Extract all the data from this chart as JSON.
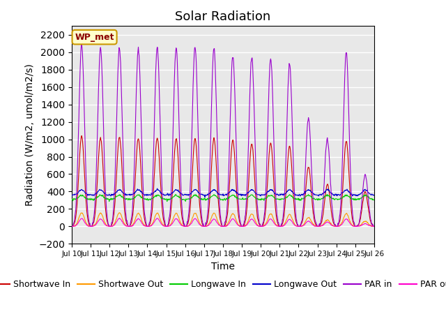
{
  "title": "Solar Radiation",
  "xlabel": "Time",
  "ylabel": "Radiation (W/m2, umol/m2/s)",
  "xlim_days": [
    10,
    26
  ],
  "ylim": [
    -200,
    2300
  ],
  "yticks": [
    -200,
    0,
    200,
    400,
    600,
    800,
    1000,
    1200,
    1400,
    1600,
    1800,
    2000,
    2200
  ],
  "xtick_positions": [
    10,
    11,
    12,
    13,
    14,
    15,
    16,
    17,
    18,
    19,
    20,
    21,
    22,
    23,
    24,
    25,
    26
  ],
  "xtick_labels": [
    "Jul 10",
    "Jul 11",
    "Jul 12",
    "Jul 13",
    "Jul 14",
    "Jul 15",
    "Jul 16",
    "Jul 17",
    "Jul 18",
    "Jul 19",
    "Jul 20",
    "Jul 21",
    "Jul 22",
    "Jul 23",
    "Jul 24",
    "Jul 25",
    "Jul 26"
  ],
  "legend_label": "WP_met",
  "colors": {
    "shortwave_in": "#cc0000",
    "shortwave_out": "#ff9900",
    "longwave_in": "#00cc00",
    "longwave_out": "#0000cc",
    "par_in": "#9900cc",
    "par_out": "#ff00cc"
  },
  "background_color": "#e8e8e8",
  "grid_color": "#ffffff",
  "title_fontsize": 13,
  "axis_fontsize": 10,
  "legend_fontsize": 9,
  "num_days": 16,
  "start_day": 10
}
